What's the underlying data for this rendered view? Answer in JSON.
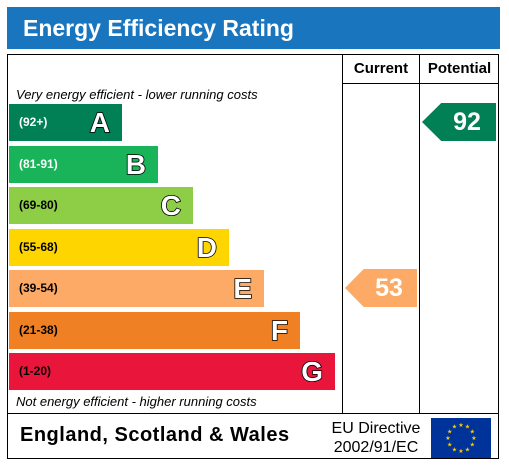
{
  "title": "Energy Efficiency Rating",
  "columns": {
    "current": "Current",
    "potential": "Potential"
  },
  "captions": {
    "top": "Very energy efficient - lower running costs",
    "bottom": "Not energy efficient - higher running costs"
  },
  "bands": [
    {
      "range": "(92+)",
      "letter": "A",
      "color": "#008054",
      "range_color": "#ffffff"
    },
    {
      "range": "(81-91)",
      "letter": "B",
      "color": "#19b459",
      "range_color": "#ffffff"
    },
    {
      "range": "(69-80)",
      "letter": "C",
      "color": "#8dce46",
      "range_color": "#000000"
    },
    {
      "range": "(55-68)",
      "letter": "D",
      "color": "#ffd500",
      "range_color": "#000000"
    },
    {
      "range": "(39-54)",
      "letter": "E",
      "color": "#fcaa65",
      "range_color": "#000000"
    },
    {
      "range": "(21-38)",
      "letter": "F",
      "color": "#ef8023",
      "range_color": "#000000"
    },
    {
      "range": "(1-20)",
      "letter": "G",
      "color": "#e9153b",
      "range_color": "#000000"
    }
  ],
  "current": {
    "value": "53",
    "band": "E",
    "color": "#fcaa65"
  },
  "potential": {
    "value": "92",
    "band": "A",
    "color": "#008054"
  },
  "footer": {
    "region": "England, Scotland & Wales",
    "directive_line1": "EU Directive",
    "directive_line2": "2002/91/EC",
    "flag": {
      "name": "eu-flag-icon",
      "background": "#003399",
      "stars": "#ffcc00"
    }
  }
}
